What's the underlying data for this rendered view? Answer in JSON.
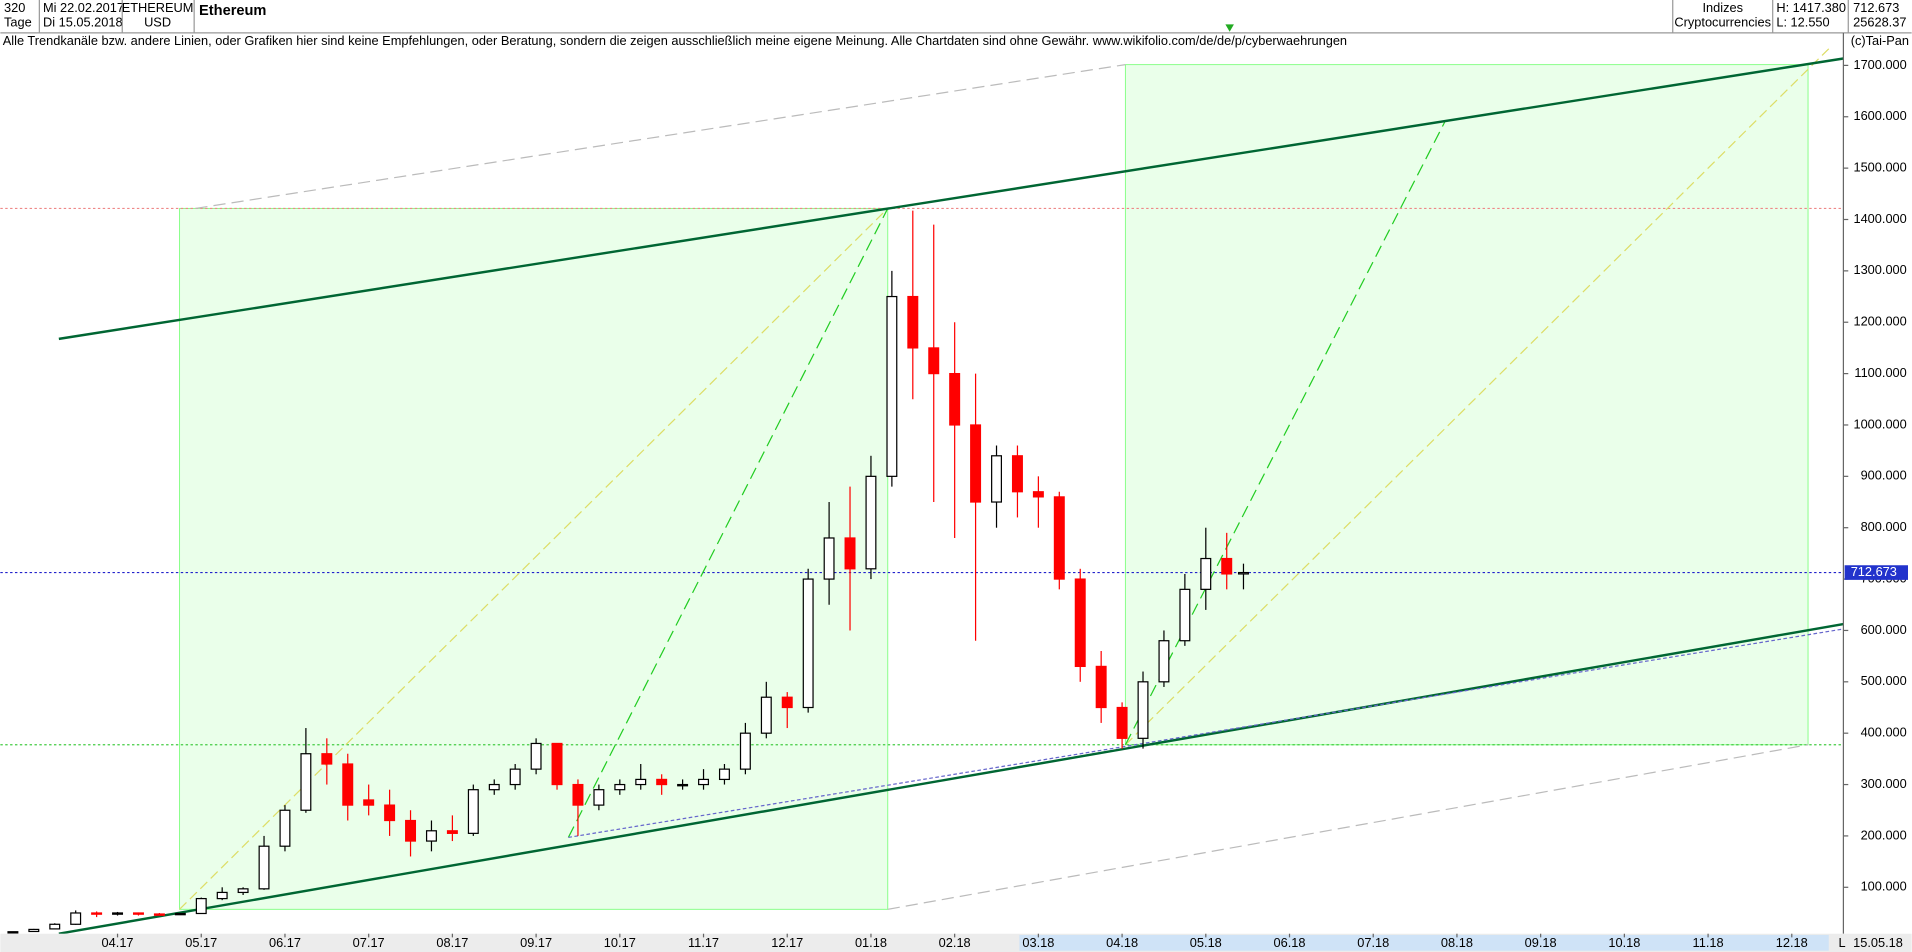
{
  "header": {
    "count": "320",
    "period": "Tage",
    "date_from": "Mi 22.02.2017",
    "date_to": "Di 15.05.2018",
    "symbol": "ETHEREUM",
    "currency": "USD",
    "name": "Ethereum",
    "group": "Indizes",
    "subgroup": "Cryptocurrencies",
    "high": "H: 1417.380",
    "low": "L: 12.550",
    "last": "712.673",
    "volume": "25628.37",
    "disclaimer": "Alle Trendkanäle bzw. andere Linien, oder Grafiken hier sind keine Empfehlungen, oder Beratung, sondern die zeigen ausschließlich meine eigene Meinung. Alle Chartdaten sind ohne Gewähr.  www.wikifolio.com/de/de/p/cyberwaehrungen",
    "copyright": "(c)Tai-Pan",
    "scale_mode": "L",
    "end_date": "15.05.18"
  },
  "chart_data": {
    "type": "candlestick",
    "title": "Ethereum",
    "x": [
      2.75,
      3.0,
      3.25,
      3.5,
      3.75,
      4.0,
      4.25,
      4.5,
      4.75,
      5.0,
      5.25,
      5.5,
      5.75,
      6.0,
      6.25,
      6.5,
      6.75,
      7.0,
      7.25,
      7.5,
      7.75,
      8.0,
      8.25,
      8.5,
      8.75,
      9.0,
      9.25,
      9.5,
      9.75,
      10.0,
      10.25,
      10.5,
      10.75,
      11.0,
      11.25,
      11.5,
      11.75,
      12.0,
      12.25,
      12.5,
      12.75,
      13.0,
      13.25,
      13.5,
      13.75,
      14.0,
      14.25,
      14.5,
      14.75,
      15.0,
      15.25,
      15.5,
      15.75,
      16.0,
      16.25,
      16.5,
      16.75,
      17.0,
      17.25,
      17.45
    ],
    "open": [
      13,
      14,
      19,
      28,
      50,
      48,
      50,
      48,
      47,
      49,
      78,
      90,
      97,
      180,
      250,
      360,
      340,
      270,
      260,
      230,
      190,
      210,
      205,
      290,
      300,
      330,
      380,
      300,
      260,
      290,
      300,
      310,
      300,
      300,
      310,
      330,
      400,
      470,
      450,
      700,
      780,
      720,
      900,
      1250,
      1150,
      1100,
      1000,
      850,
      940,
      870,
      860,
      700,
      530,
      450,
      390,
      500,
      580,
      680,
      740,
      710
    ],
    "high": [
      14,
      19,
      30,
      55,
      53,
      52,
      51,
      50,
      50,
      80,
      100,
      100,
      200,
      260,
      410,
      390,
      360,
      300,
      290,
      250,
      230,
      240,
      300,
      310,
      340,
      390,
      380,
      310,
      300,
      310,
      340,
      320,
      310,
      330,
      340,
      420,
      500,
      480,
      720,
      850,
      880,
      940,
      1300,
      1417.38,
      1390,
      1200,
      1100,
      960,
      960,
      900,
      870,
      720,
      560,
      460,
      520,
      600,
      710,
      800,
      790,
      730
    ],
    "low": [
      12.55,
      13,
      18,
      27,
      42,
      45,
      45,
      45,
      46,
      48,
      75,
      85,
      95,
      170,
      245,
      300,
      230,
      240,
      200,
      160,
      170,
      190,
      200,
      280,
      290,
      320,
      290,
      200,
      250,
      280,
      290,
      280,
      290,
      290,
      300,
      320,
      390,
      410,
      440,
      650,
      600,
      700,
      880,
      1050,
      850,
      780,
      580,
      800,
      820,
      800,
      680,
      500,
      420,
      370,
      370,
      490,
      570,
      640,
      680,
      680
    ],
    "close": [
      13.5,
      18,
      28,
      50,
      48,
      50,
      48,
      47,
      49,
      78,
      90,
      97,
      180,
      250,
      360,
      340,
      260,
      260,
      230,
      190,
      210,
      205,
      290,
      300,
      330,
      380,
      300,
      260,
      290,
      300,
      310,
      300,
      300,
      310,
      330,
      400,
      470,
      450,
      700,
      780,
      720,
      900,
      1250,
      1150,
      1100,
      1000,
      850,
      940,
      870,
      860,
      700,
      530,
      450,
      390,
      500,
      580,
      680,
      740,
      710,
      712.673
    ],
    "up_color": "#000000",
    "down_color": "#ff0000",
    "ylim": [
      12,
      1730
    ],
    "yticks": [
      {
        "value": 100,
        "label": "100.000"
      },
      {
        "value": 200,
        "label": "200.000"
      },
      {
        "value": 300,
        "label": "300.000"
      },
      {
        "value": 400,
        "label": "400.000"
      },
      {
        "value": 500,
        "label": "500.000"
      },
      {
        "value": 600,
        "label": "600.000"
      },
      {
        "value": 700,
        "label": "700.000"
      },
      {
        "value": 800,
        "label": "800.000"
      },
      {
        "value": 900,
        "label": "900.000"
      },
      {
        "value": 1000,
        "label": "1000.000"
      },
      {
        "value": 1100,
        "label": "1100.000"
      },
      {
        "value": 1200,
        "label": "1200.000"
      },
      {
        "value": 1300,
        "label": "1300.000"
      },
      {
        "value": 1400,
        "label": "1400.000"
      },
      {
        "value": 1500,
        "label": "1500.000"
      },
      {
        "value": 1600,
        "label": "1600.000"
      },
      {
        "value": 1700,
        "label": "1700.000"
      }
    ],
    "xlim": [
      2.6,
      24.5
    ],
    "xticks": [
      {
        "value": 4,
        "label": "04.17"
      },
      {
        "value": 5,
        "label": "05.17"
      },
      {
        "value": 6,
        "label": "06.17"
      },
      {
        "value": 7,
        "label": "07.17"
      },
      {
        "value": 8,
        "label": "08.17"
      },
      {
        "value": 9,
        "label": "09.17"
      },
      {
        "value": 10,
        "label": "10.17"
      },
      {
        "value": 11,
        "label": "11.17"
      },
      {
        "value": 12,
        "label": "12.17"
      },
      {
        "value": 13,
        "label": "01.18"
      },
      {
        "value": 14,
        "label": "02.18"
      },
      {
        "value": 15,
        "label": "03.18"
      },
      {
        "value": 16,
        "label": "04.18"
      },
      {
        "value": 17,
        "label": "05.18"
      },
      {
        "value": 18,
        "label": "06.18"
      },
      {
        "value": 19,
        "label": "07.18"
      },
      {
        "value": 20,
        "label": "08.18"
      },
      {
        "value": 21,
        "label": "09.18"
      },
      {
        "value": 22,
        "label": "10.18"
      },
      {
        "value": 23,
        "label": "11.18"
      },
      {
        "value": 24,
        "label": "12.18"
      }
    ],
    "last_price": {
      "value": 712.673,
      "label": "712.673"
    }
  }
}
